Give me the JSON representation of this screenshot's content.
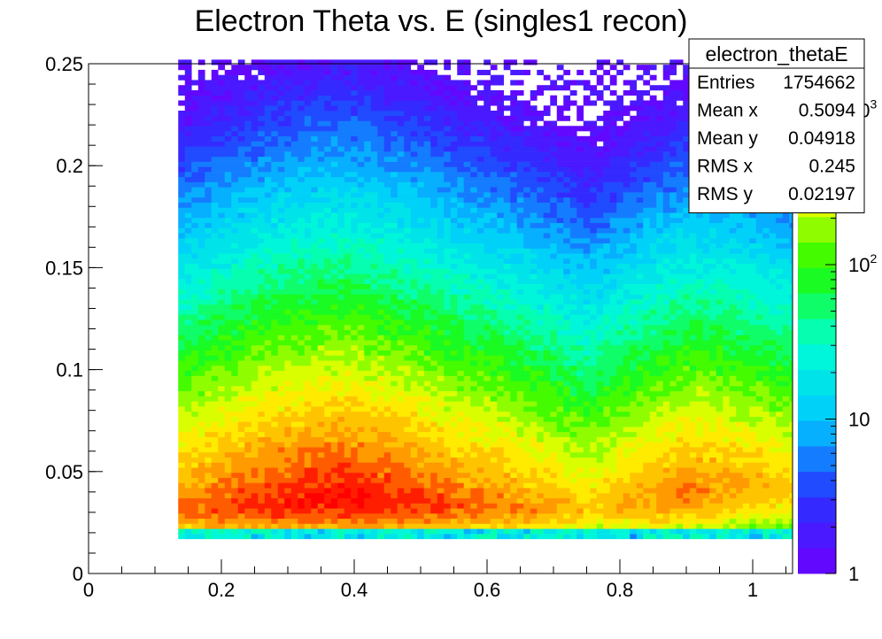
{
  "chart_data": {
    "type": "heatmap",
    "title": "Electron Theta vs. E (singles1 recon)",
    "xlabel": "",
    "ylabel": "",
    "xlim": [
      0,
      1.06
    ],
    "ylim": [
      0,
      0.25
    ],
    "x_ticks": [
      "0",
      "0.2",
      "0.4",
      "0.6",
      "0.8",
      "1"
    ],
    "y_ticks": [
      "0",
      "0.05",
      "0.1",
      "0.15",
      "0.2",
      "0.25"
    ],
    "x_tick_values": [
      0,
      0.2,
      0.4,
      0.6,
      0.8,
      1.0
    ],
    "y_tick_values": [
      0,
      0.05,
      0.1,
      0.15,
      0.2,
      0.25
    ],
    "z_scale": "log",
    "z_range": [
      1,
      2000
    ],
    "z_labels": [
      {
        "value": 1,
        "base": "1",
        "exp": ""
      },
      {
        "value": 10,
        "base": "10",
        "exp": ""
      },
      {
        "value": 100,
        "base": "10",
        "exp": "2"
      },
      {
        "value": 1000,
        "base": "10",
        "exp": "3"
      }
    ],
    "data_extent": {
      "x_min": 0.135,
      "x_max": 1.06,
      "y_min": 0.017,
      "y_max": 0.25
    },
    "ridge": [
      {
        "x": 0.14,
        "y": 0.031
      },
      {
        "x": 0.35,
        "y": 0.038
      },
      {
        "x": 0.55,
        "y": 0.034
      },
      {
        "x": 0.75,
        "y": 0.031
      },
      {
        "x": 0.95,
        "y": 0.044
      },
      {
        "x": 1.06,
        "y": 0.044
      }
    ],
    "peak_counts": [
      {
        "x": 0.14,
        "z": 1000
      },
      {
        "x": 0.3,
        "z": 1800
      },
      {
        "x": 0.4,
        "z": 2000
      },
      {
        "x": 0.55,
        "z": 1200
      },
      {
        "x": 0.75,
        "z": 500
      },
      {
        "x": 0.9,
        "z": 900
      },
      {
        "x": 1.06,
        "z": 500
      }
    ],
    "stats": {
      "name": "electron_thetaE",
      "rows": [
        {
          "label": "Entries",
          "value": "1754662"
        },
        {
          "label": "Mean x",
          "value": "0.5094"
        },
        {
          "label": "Mean y",
          "value": "0.04918"
        },
        {
          "label": "RMS x",
          "value": "0.245"
        },
        {
          "label": "RMS y",
          "value": "0.02197"
        }
      ]
    }
  }
}
